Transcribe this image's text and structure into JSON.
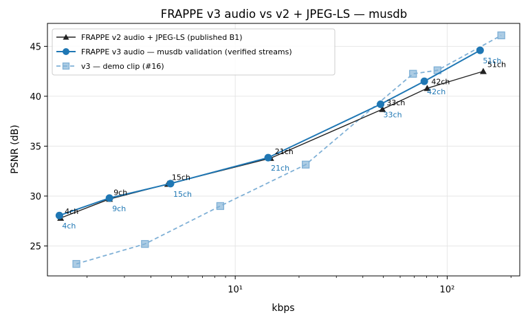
{
  "chart_data": {
    "type": "line",
    "title": "FRAPPE v3 audio vs v2 + JPEG-LS — musdb",
    "xlabel": "kbps",
    "ylabel": "PSNR (dB)",
    "xscale": "log",
    "xlim": [
      1.3,
      220
    ],
    "ylim": [
      22,
      47.3
    ],
    "x_ticks": [
      10,
      100
    ],
    "x_tick_labels": [
      "10¹",
      "10²"
    ],
    "y_ticks": [
      25,
      30,
      35,
      40,
      45
    ],
    "y_tick_labels": [
      "25",
      "30",
      "35",
      "40",
      "45"
    ],
    "grid": true,
    "legend_position": "top-left",
    "series": [
      {
        "name": "FRAPPE v2 audio + JPEG-LS (published B1)",
        "color": "#222222",
        "marker": "triangle",
        "linestyle": "solid",
        "x": [
          1.5,
          2.55,
          4.8,
          14.7,
          49.5,
          80.5,
          148
        ],
        "y": [
          27.8,
          29.7,
          31.2,
          33.8,
          38.7,
          40.8,
          42.5
        ],
        "labels": [
          "4ch",
          "9ch",
          "15ch",
          "21ch",
          "33ch",
          "42ch",
          "51ch"
        ]
      },
      {
        "name": "FRAPPE v3 audio — musdb validation (verified streams)",
        "color": "#1f77b4",
        "marker": "circle",
        "linestyle": "solid",
        "x": [
          1.48,
          2.55,
          4.95,
          14.3,
          48.5,
          78,
          143
        ],
        "y": [
          28.05,
          29.8,
          31.25,
          33.85,
          39.2,
          41.5,
          44.6
        ],
        "labels": [
          "4ch",
          "9ch",
          "15ch",
          "21ch",
          "33ch",
          "42ch",
          "51ch"
        ]
      },
      {
        "name": "v3 — demo clip (#16)",
        "color": "#7fb0d6",
        "marker": "square",
        "linestyle": "dashed",
        "x": [
          1.78,
          3.75,
          8.5,
          21.5,
          69,
          90,
          180
        ],
        "y": [
          23.2,
          25.2,
          29.0,
          33.15,
          42.25,
          42.6,
          46.1
        ]
      }
    ]
  }
}
